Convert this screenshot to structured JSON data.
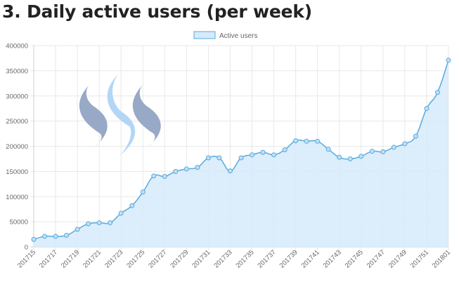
{
  "page": {
    "title": "3. Daily active users (per week)"
  },
  "chart_data": {
    "type": "area",
    "title": "3. Daily active users (per week)",
    "legend_position": "top",
    "grid": true,
    "ylim": [
      0,
      400000
    ],
    "y_ticks": [
      "0",
      "50000",
      "100000",
      "150000",
      "200000",
      "250000",
      "300000",
      "350000",
      "400000"
    ],
    "x_tick_labels": [
      "201715",
      "201717",
      "201719",
      "201721",
      "201723",
      "201725",
      "201727",
      "201729",
      "201731",
      "201733",
      "201735",
      "201737",
      "201739",
      "201741",
      "201743",
      "201745",
      "201747",
      "201749",
      "201751",
      "201801"
    ],
    "categories": [
      "201715",
      "201716",
      "201717",
      "201718",
      "201719",
      "201720",
      "201721",
      "201722",
      "201723",
      "201724",
      "201725",
      "201726",
      "201727",
      "201728",
      "201729",
      "201730",
      "201731",
      "201732",
      "201733",
      "201734",
      "201735",
      "201736",
      "201737",
      "201738",
      "201739",
      "201740",
      "201741",
      "201742",
      "201743",
      "201744",
      "201745",
      "201746",
      "201747",
      "201748",
      "201749",
      "201750",
      "201751",
      "201752",
      "201801"
    ],
    "series": [
      {
        "name": "Active users",
        "color": "#5aa9dd",
        "fill": "#d6eafa",
        "values": [
          15000,
          21000,
          21000,
          23000,
          35000,
          46000,
          48000,
          48000,
          67000,
          82000,
          109000,
          141000,
          140000,
          150000,
          155000,
          158000,
          177000,
          177000,
          151000,
          177000,
          183000,
          188000,
          183000,
          193000,
          211000,
          210000,
          210000,
          194000,
          178000,
          175000,
          180000,
          190000,
          189000,
          198000,
          205000,
          220000,
          275000,
          307000,
          371000
        ]
      }
    ]
  },
  "logo": {
    "name": "steem-logo",
    "colors": [
      "#98a9c7",
      "#b3d6f7",
      "#98a9c7"
    ]
  }
}
